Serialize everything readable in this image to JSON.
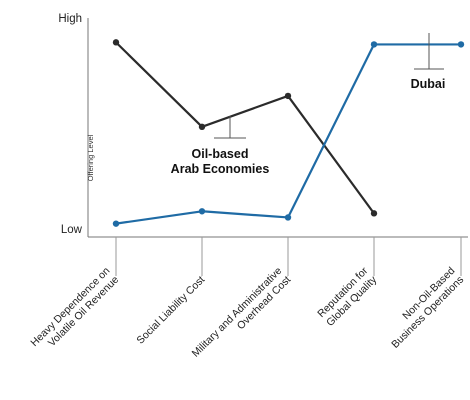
{
  "chart_data": {
    "type": "line",
    "ylabel": "Offering Level",
    "y_ticks": [
      "High",
      "Low"
    ],
    "ylim": [
      0,
      10
    ],
    "categories": [
      [
        "Heavy Dependence on",
        "Volatile Oil Revenue"
      ],
      [
        "Social Liability Cost"
      ],
      [
        "Military and Administrative",
        "Overhead Cost"
      ],
      [
        "Reputation for",
        "Global Quality"
      ],
      [
        "Non-Oil-Based",
        "Business Operations"
      ]
    ],
    "series": [
      {
        "name": "Oil-based Arab Economies",
        "label_lines": [
          "Oil-based",
          "Arab Economies"
        ],
        "color": "#2b2b2b",
        "values": [
          9.4,
          5.3,
          6.8,
          1.1,
          null
        ]
      },
      {
        "name": "Dubai",
        "label_lines": [
          "Dubai"
        ],
        "color": "#1f6ba5",
        "values": [
          0.6,
          1.2,
          0.9,
          9.3,
          9.3
        ]
      }
    ],
    "grid": false,
    "legend": "inline annotations"
  }
}
